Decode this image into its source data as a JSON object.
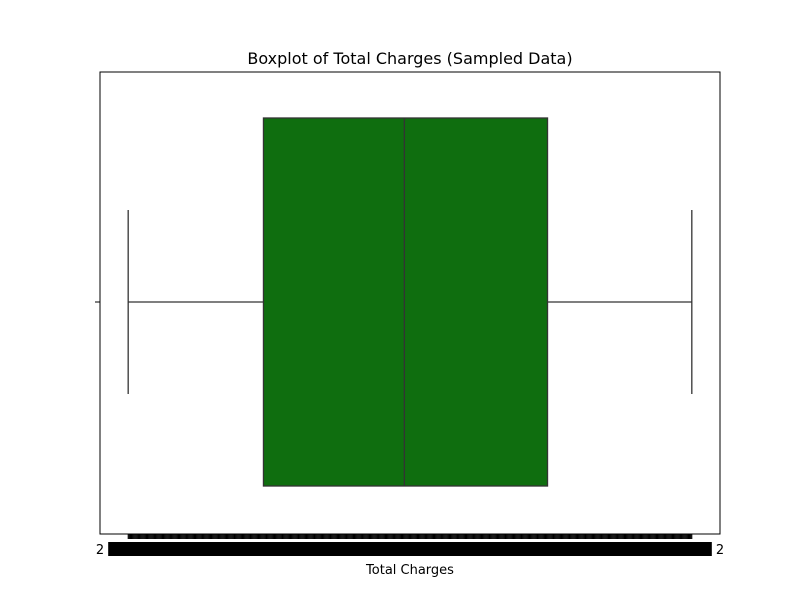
{
  "chart_data": {
    "type": "boxplot",
    "orientation": "horizontal",
    "title": "Boxplot of Total Charges (Sampled Data)",
    "xlabel": "Total Charges",
    "ylabel": "",
    "box_color": "#0f6e0f",
    "line_color": "#333333",
    "grid": false,
    "legend": "none",
    "note": "x-axis treated as categorical; tick labels overlap into an unreadable band",
    "box": {
      "whisker_low": 0,
      "q1": 0.24,
      "median": 0.49,
      "q3": 0.744,
      "whisker_high": 1
    },
    "xlim": [
      -0.05,
      1.05
    ],
    "x_tick_count": 600,
    "x_tick_edge_labels": [
      "2",
      "2"
    ]
  }
}
